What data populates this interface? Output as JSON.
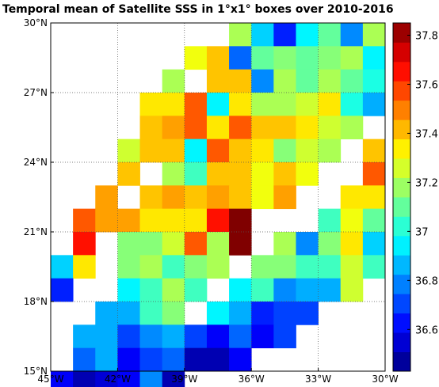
{
  "chart_data": {
    "type": "heatmap",
    "title": "Temporal mean of Satellite SSS in 1°x1° boxes over 2010-2016",
    "x_range": [
      -45,
      -30
    ],
    "y_range": [
      15,
      30
    ],
    "x_ticks": [
      {
        "value": -45,
        "label": "45°W"
      },
      {
        "value": -42,
        "label": "42°W"
      },
      {
        "value": -39,
        "label": "39°W"
      },
      {
        "value": -36,
        "label": "36°W"
      },
      {
        "value": -33,
        "label": "33°W"
      },
      {
        "value": -30,
        "label": "30°W"
      }
    ],
    "y_ticks": [
      {
        "value": 15,
        "label": "15°N"
      },
      {
        "value": 18,
        "label": "18°N"
      },
      {
        "value": 21,
        "label": "21°N"
      },
      {
        "value": 24,
        "label": "24°N"
      },
      {
        "value": 27,
        "label": "27°N"
      },
      {
        "value": 30,
        "label": "30°N"
      }
    ],
    "grid": true,
    "colormap": "jet",
    "color_range": [
      36.43,
      37.85
    ],
    "colorbar_ticks": [
      {
        "value": 36.6,
        "label": "36.6"
      },
      {
        "value": 36.8,
        "label": "36.8"
      },
      {
        "value": 37.0,
        "label": "37"
      },
      {
        "value": 37.2,
        "label": "37.2"
      },
      {
        "value": 37.4,
        "label": "37.4"
      },
      {
        "value": 37.6,
        "label": "37.6"
      },
      {
        "value": 37.8,
        "label": "37.8"
      }
    ],
    "colorbar_position": "right",
    "lon_start": -45,
    "lat_top": 30,
    "rows": [
      [
        null,
        null,
        null,
        null,
        null,
        null,
        null,
        null,
        37.2,
        36.9,
        36.65,
        36.95,
        37.1,
        36.8,
        37.2
      ],
      [
        null,
        null,
        null,
        null,
        null,
        null,
        37.3,
        37.4,
        36.75,
        37.1,
        37.15,
        37.1,
        37.15,
        37.2,
        36.95
      ],
      [
        null,
        null,
        null,
        null,
        null,
        37.2,
        null,
        37.4,
        37.4,
        36.8,
        37.2,
        37.1,
        37.2,
        37.1,
        37.0
      ],
      [
        null,
        null,
        null,
        null,
        37.35,
        37.35,
        37.55,
        36.95,
        37.35,
        37.2,
        37.2,
        37.25,
        37.35,
        37.0,
        36.85
      ],
      [
        null,
        null,
        null,
        null,
        37.4,
        37.45,
        37.55,
        37.35,
        37.55,
        37.4,
        37.4,
        37.35,
        37.25,
        37.2,
        null
      ],
      [
        null,
        null,
        null,
        37.25,
        37.4,
        37.4,
        36.95,
        37.55,
        37.4,
        37.35,
        37.15,
        37.25,
        37.2,
        null,
        37.4
      ],
      [
        null,
        null,
        null,
        37.4,
        null,
        37.2,
        37.05,
        37.4,
        37.4,
        37.3,
        37.4,
        37.3,
        null,
        null,
        37.55
      ],
      [
        null,
        null,
        37.45,
        null,
        37.4,
        37.45,
        37.4,
        37.45,
        37.4,
        37.3,
        37.45,
        null,
        null,
        37.35,
        37.35
      ],
      [
        null,
        37.55,
        37.45,
        37.45,
        37.35,
        37.35,
        37.35,
        37.65,
        37.85,
        null,
        null,
        null,
        37.05,
        37.3,
        37.1
      ],
      [
        null,
        37.65,
        null,
        37.15,
        37.15,
        37.25,
        37.55,
        37.2,
        37.85,
        null,
        37.2,
        36.8,
        37.15,
        37.35,
        36.9
      ],
      [
        36.9,
        37.35,
        null,
        37.15,
        37.2,
        37.05,
        37.15,
        37.2,
        null,
        37.15,
        37.15,
        37.05,
        37.05,
        37.25,
        37.05
      ],
      [
        36.65,
        null,
        null,
        36.95,
        37.05,
        37.2,
        37.05,
        null,
        36.95,
        37.05,
        36.8,
        36.85,
        36.85,
        37.25,
        null
      ],
      [
        null,
        null,
        36.85,
        36.85,
        37.05,
        37.15,
        null,
        36.95,
        36.85,
        36.65,
        36.7,
        36.7,
        null,
        null,
        null
      ],
      [
        null,
        36.85,
        36.85,
        36.7,
        36.8,
        36.85,
        36.7,
        36.6,
        36.75,
        36.6,
        36.7,
        null,
        null,
        null,
        null
      ],
      [
        null,
        36.75,
        36.85,
        36.6,
        36.7,
        36.75,
        36.5,
        36.5,
        36.6,
        null,
        null,
        null,
        null,
        null,
        null
      ],
      [
        36.6,
        36.5,
        36.55,
        36.6,
        36.8,
        36.5,
        null,
        null,
        null,
        null,
        null,
        null,
        null,
        null,
        null
      ]
    ]
  }
}
